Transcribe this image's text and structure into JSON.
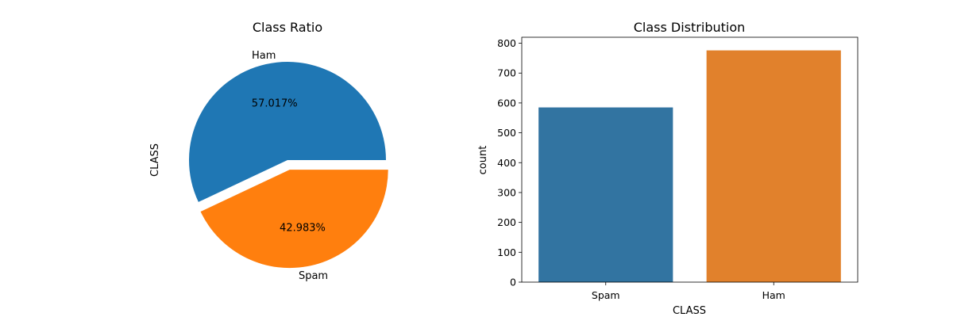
{
  "chart_data": [
    {
      "type": "pie",
      "title": "Class Ratio",
      "ylabel": "CLASS",
      "labels": [
        "Ham",
        "Spam"
      ],
      "values": [
        57.017,
        42.983
      ],
      "pct_labels": [
        "57.017%",
        "42.983%"
      ],
      "explode": [
        0,
        0.1
      ],
      "colors": [
        "#1f77b4",
        "#ff7f0e"
      ]
    },
    {
      "type": "bar",
      "title": "Class Distribution",
      "xlabel": "CLASS",
      "ylabel": "count",
      "categories": [
        "Spam",
        "Ham"
      ],
      "values": [
        585,
        776
      ],
      "colors": [
        "#3274a1",
        "#e1812c"
      ],
      "ylim": [
        0,
        820
      ],
      "yticks": [
        0,
        100,
        200,
        300,
        400,
        500,
        600,
        700,
        800
      ]
    }
  ]
}
